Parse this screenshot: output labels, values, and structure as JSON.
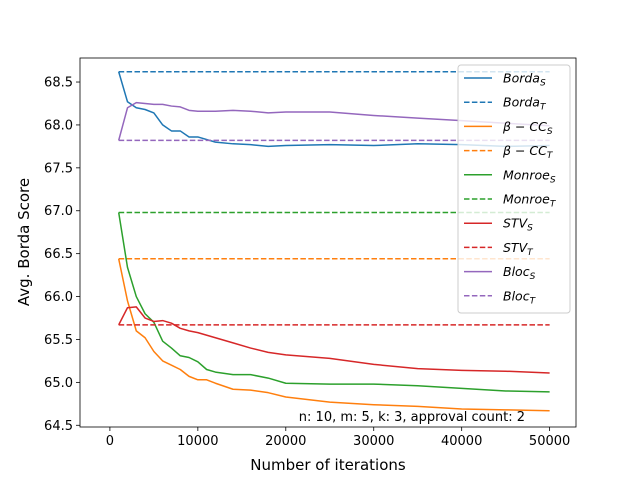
{
  "chart_data": {
    "type": "line",
    "title": "",
    "xlabel": "Number of iterations",
    "ylabel": "Avg. Borda Score",
    "xlim": [
      -3400,
      53000
    ],
    "ylim": [
      64.48,
      68.78
    ],
    "xticks": [
      0,
      10000,
      20000,
      30000,
      40000,
      50000
    ],
    "xtick_labels": [
      "0",
      "10000",
      "20000",
      "30000",
      "40000",
      "50000"
    ],
    "yticks": [
      64.5,
      65.0,
      65.5,
      66.0,
      66.5,
      67.0,
      67.5,
      68.0,
      68.5
    ],
    "ytick_labels": [
      "64.5",
      "65.0",
      "65.5",
      "66.0",
      "66.5",
      "67.0",
      "67.5",
      "68.0",
      "68.5"
    ],
    "grid": false,
    "legend_position": "top-right",
    "annotation": "n: 10, m: 5, k: 3, approval count: 2",
    "series": [
      {
        "name": "Borda_S",
        "label_main": "Borda",
        "label_sub": "S",
        "color": "#1f77b4",
        "style": "solid",
        "x": [
          1000,
          2000,
          3000,
          4000,
          5000,
          6000,
          7000,
          8000,
          9000,
          10000,
          12000,
          14000,
          16000,
          18000,
          20000,
          25000,
          30000,
          35000,
          40000,
          45000,
          50000
        ],
        "y": [
          68.62,
          68.27,
          68.2,
          68.18,
          68.14,
          68.0,
          67.93,
          67.93,
          67.86,
          67.86,
          67.8,
          67.78,
          67.77,
          67.75,
          67.76,
          67.77,
          67.76,
          67.78,
          67.77,
          67.75,
          67.76
        ]
      },
      {
        "name": "Borda_T",
        "label_main": "Borda",
        "label_sub": "T",
        "color": "#1f77b4",
        "style": "dashed",
        "x": [
          1000,
          50000
        ],
        "y": [
          68.62,
          68.62
        ]
      },
      {
        "name": "β−CC_S",
        "label_main": "β − CC",
        "label_sub": "S",
        "color": "#ff7f0e",
        "style": "solid",
        "x": [
          1000,
          2000,
          3000,
          4000,
          5000,
          6000,
          7000,
          8000,
          9000,
          10000,
          11000,
          12000,
          14000,
          16000,
          18000,
          20000,
          25000,
          30000,
          35000,
          40000,
          45000,
          50000
        ],
        "y": [
          66.44,
          65.95,
          65.6,
          65.52,
          65.36,
          65.25,
          65.2,
          65.15,
          65.07,
          65.03,
          65.03,
          64.99,
          64.92,
          64.91,
          64.88,
          64.83,
          64.77,
          64.74,
          64.72,
          64.69,
          64.68,
          64.67
        ]
      },
      {
        "name": "β−CC_T",
        "label_main": "β − CC",
        "label_sub": "T",
        "color": "#ff7f0e",
        "style": "dashed",
        "x": [
          1000,
          50000
        ],
        "y": [
          66.44,
          66.44
        ]
      },
      {
        "name": "Monroe_S",
        "label_main": "Monroe",
        "label_sub": "S",
        "color": "#2ca02c",
        "style": "solid",
        "x": [
          1000,
          2000,
          3000,
          4000,
          5000,
          6000,
          7000,
          8000,
          9000,
          10000,
          11000,
          12000,
          14000,
          16000,
          18000,
          20000,
          25000,
          30000,
          35000,
          40000,
          45000,
          50000
        ],
        "y": [
          66.98,
          66.34,
          66.0,
          65.8,
          65.7,
          65.48,
          65.4,
          65.31,
          65.29,
          65.24,
          65.15,
          65.12,
          65.09,
          65.09,
          65.05,
          64.99,
          64.98,
          64.98,
          64.96,
          64.93,
          64.9,
          64.89
        ]
      },
      {
        "name": "Monroe_T",
        "label_main": "Monroe",
        "label_sub": "T",
        "color": "#2ca02c",
        "style": "dashed",
        "x": [
          1000,
          50000
        ],
        "y": [
          66.98,
          66.98
        ]
      },
      {
        "name": "STV_S",
        "label_main": "STV",
        "label_sub": "S",
        "color": "#d62728",
        "style": "solid",
        "x": [
          1000,
          2000,
          3000,
          4000,
          5000,
          6000,
          7000,
          8000,
          9000,
          10000,
          12000,
          14000,
          16000,
          18000,
          20000,
          25000,
          30000,
          35000,
          40000,
          45000,
          50000
        ],
        "y": [
          65.67,
          65.87,
          65.88,
          65.75,
          65.71,
          65.72,
          65.69,
          65.63,
          65.6,
          65.58,
          65.52,
          65.46,
          65.4,
          65.35,
          65.32,
          65.28,
          65.21,
          65.16,
          65.14,
          65.13,
          65.11
        ]
      },
      {
        "name": "STV_T",
        "label_main": "STV",
        "label_sub": "T",
        "color": "#d62728",
        "style": "dashed",
        "x": [
          1000,
          50000
        ],
        "y": [
          65.67,
          65.67
        ]
      },
      {
        "name": "Bloc_S",
        "label_main": "Bloc",
        "label_sub": "S",
        "color": "#9467bd",
        "style": "solid",
        "x": [
          1000,
          2000,
          3000,
          4000,
          5000,
          6000,
          7000,
          8000,
          9000,
          10000,
          12000,
          14000,
          16000,
          18000,
          20000,
          25000,
          30000,
          35000,
          40000,
          45000,
          50000
        ],
        "y": [
          67.82,
          68.2,
          68.26,
          68.25,
          68.24,
          68.24,
          68.22,
          68.21,
          68.17,
          68.16,
          68.16,
          68.17,
          68.16,
          68.14,
          68.15,
          68.15,
          68.11,
          68.08,
          68.05,
          68.02,
          67.99
        ]
      },
      {
        "name": "Bloc_T",
        "label_main": "Bloc",
        "label_sub": "T",
        "color": "#9467bd",
        "style": "dashed",
        "x": [
          1000,
          50000
        ],
        "y": [
          67.82,
          67.82
        ]
      }
    ]
  }
}
